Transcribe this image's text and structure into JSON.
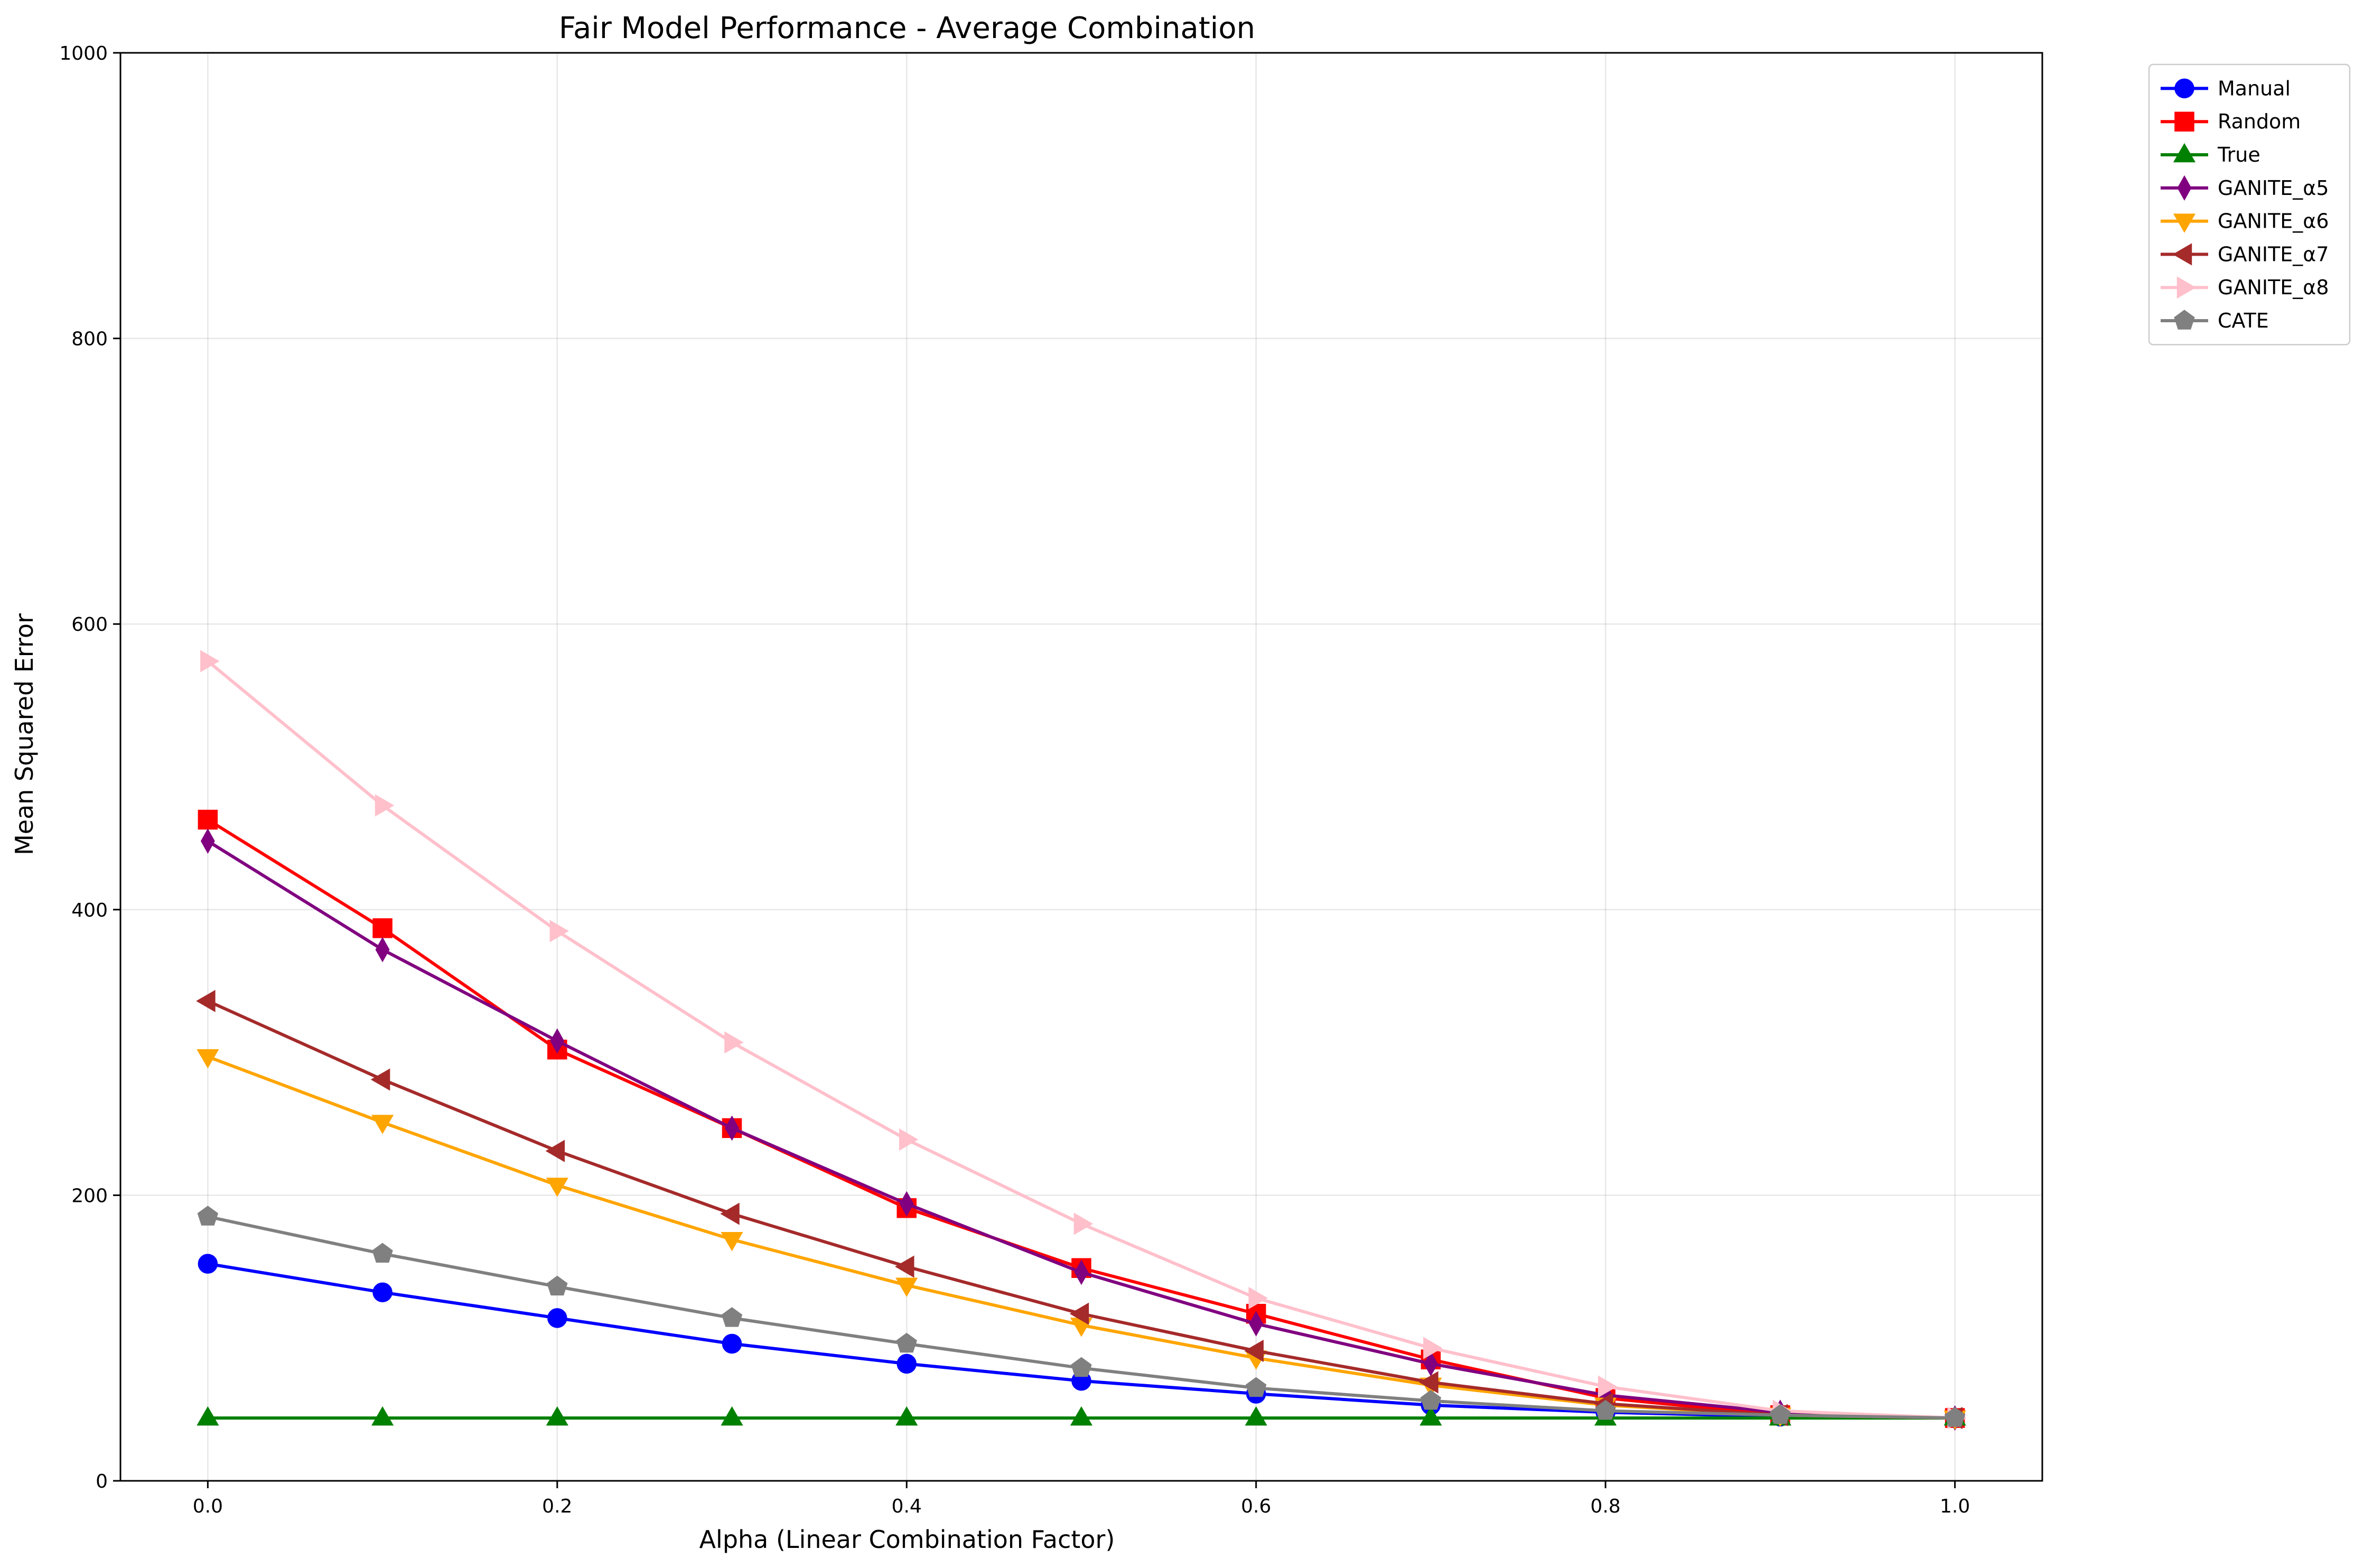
{
  "chart_data": {
    "type": "line",
    "title": "Fair Model Performance - Average Combination",
    "xlabel": "Alpha (Linear Combination Factor)",
    "ylabel": "Mean Squared Error",
    "xlim": [
      -0.05,
      1.05
    ],
    "ylim": [
      0,
      1000
    ],
    "xticks": [
      "0.0",
      "0.2",
      "0.4",
      "0.6",
      "0.8",
      "1.0"
    ],
    "yticks": [
      "0",
      "200",
      "400",
      "600",
      "800",
      "1000"
    ],
    "grid": true,
    "legend_position": "outside upper right",
    "x": [
      0.0,
      0.1,
      0.2,
      0.3,
      0.4,
      0.5,
      0.6,
      0.7,
      0.8,
      0.9,
      1.0
    ],
    "series": [
      {
        "name": "Manual",
        "color": "#0000ff",
        "marker": "circle",
        "values": [
          152,
          132,
          114,
          96,
          82,
          70,
          61,
          53,
          48,
          45,
          44
        ]
      },
      {
        "name": "Random",
        "color": "#ff0000",
        "marker": "square",
        "values": [
          463,
          387,
          302,
          247,
          191,
          149,
          117,
          85,
          58,
          46,
          44
        ]
      },
      {
        "name": "True",
        "color": "#008000",
        "marker": "triangle-up",
        "values": [
          44,
          44,
          44,
          44,
          44,
          44,
          44,
          44,
          44,
          44,
          44
        ]
      },
      {
        "name": "GANITE_α5",
        "color": "#800080",
        "marker": "thin-diamond",
        "values": [
          448,
          372,
          308,
          247,
          194,
          146,
          110,
          82,
          60,
          48,
          44
        ]
      },
      {
        "name": "GANITE_α6",
        "color": "#ffa500",
        "marker": "triangle-down",
        "values": [
          297,
          251,
          207,
          169,
          137,
          109,
          86,
          67,
          53,
          46,
          44
        ]
      },
      {
        "name": "GANITE_α7",
        "color": "#a52a2a",
        "marker": "triangle-left",
        "values": [
          336,
          281,
          231,
          187,
          150,
          117,
          91,
          69,
          54,
          46,
          44
        ]
      },
      {
        "name": "GANITE_α8",
        "color": "#ffc0cb",
        "marker": "triangle-right",
        "values": [
          574,
          473,
          385,
          307,
          239,
          180,
          128,
          93,
          66,
          49,
          44
        ]
      },
      {
        "name": "CATE",
        "color": "#808080",
        "marker": "pentagon",
        "values": [
          185,
          159,
          136,
          114,
          96,
          79,
          65,
          56,
          49,
          46,
          44
        ]
      }
    ]
  }
}
